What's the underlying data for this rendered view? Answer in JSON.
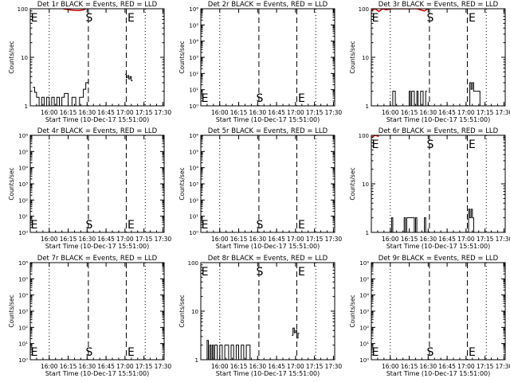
{
  "figure": {
    "panel_title_suffix": "BLACK = Events, RED = LLD",
    "ylabel": "Counts/sec",
    "xlabel": "Start Time (10-Dec-17 15:51:00)",
    "x_tick_labels": [
      "16:00",
      "16:15",
      "16:30",
      "16:45",
      "17:00",
      "17:15",
      "17:30"
    ],
    "marker_S": "S",
    "marker_E": "E",
    "colors": {
      "events": "#000000",
      "lld": "#cc0000",
      "axes": "#000000",
      "background": "#ffffff"
    }
  },
  "chart_data": [
    {
      "type": "line",
      "title": "Det 1r BLACK = Events, RED = LLD",
      "xlabel": "Start Time (10-Dec-17 15:51:00)",
      "ylabel": "Counts/sec",
      "yscale": "log",
      "ylim": [
        1,
        100
      ],
      "y_tick_labels": [
        "1",
        "10",
        "100"
      ],
      "xlim_minutes": [
        -6,
        100
      ],
      "dotted_lines_min": [
        9,
        85
      ],
      "dashed_lines_min": [
        40,
        70
      ],
      "S_min": 40,
      "E_min": 70,
      "S_anchor": "top",
      "E_anchor": "top",
      "series": [
        {
          "name": "Events",
          "color": "#000000",
          "x": [
            -4,
            -2.5,
            -2.5,
            -1,
            -1,
            1,
            1,
            3,
            3,
            5,
            5,
            7,
            7,
            9,
            9,
            11,
            11,
            13,
            13,
            15,
            15,
            17,
            17,
            19,
            19,
            21,
            21,
            24,
            24,
            27,
            27,
            30,
            30,
            33,
            33,
            36,
            36,
            38,
            38,
            40,
            40
          ],
          "y": [
            2.4,
            2.4,
            1.9,
            1.9,
            1.5,
            1.5,
            1,
            1,
            1.5,
            1.5,
            1,
            1,
            1.5,
            1.5,
            1,
            1,
            1.5,
            1.5,
            1,
            1,
            1.5,
            1.5,
            1,
            1,
            1.5,
            1.5,
            1.8,
            1.8,
            1,
            1,
            1.5,
            1.5,
            1,
            1,
            1.5,
            1.5,
            2.2,
            2.2,
            3,
            3,
            3.5
          ]
        },
        {
          "name": "Events",
          "color": "#000000",
          "x": [
            69,
            70,
            70,
            71,
            71,
            72,
            72,
            73,
            73,
            74,
            74,
            75
          ],
          "y": [
            4.5,
            4.5,
            3.8,
            3.8,
            4.2,
            4.2,
            3.6,
            3.6,
            4,
            4,
            3.3,
            3.3
          ]
        },
        {
          "name": "LLD",
          "color": "#cc0000",
          "x": [
            20,
            24,
            28,
            32,
            36,
            38
          ],
          "y": [
            100,
            96,
            93,
            92,
            95,
            100
          ]
        }
      ]
    },
    {
      "type": "line",
      "title": "Det 2r BLACK = Events, RED = LLD",
      "xlabel": "Start Time (10-Dec-17 15:51:00)",
      "ylabel": "Counts/sec",
      "yscale": "log",
      "ylim": [
        1,
        1000000
      ],
      "y_tick_labels": [
        "10⁰",
        "10¹",
        "10²",
        "10³",
        "10⁴",
        "10⁵",
        "10⁶"
      ],
      "xlim_minutes": [
        -6,
        100
      ],
      "dotted_lines_min": [
        9,
        85
      ],
      "dashed_lines_min": [
        40,
        70
      ],
      "S_min": 40,
      "E_min": 70,
      "S_anchor": "bottom",
      "E_anchor": "bottom",
      "series": []
    },
    {
      "type": "line",
      "title": "Det 3r BLACK = Events, RED = LLD",
      "xlabel": "Start Time (10-Dec-17 15:51:00)",
      "ylabel": "Counts/sec",
      "yscale": "log",
      "ylim": [
        1,
        100
      ],
      "y_tick_labels": [
        "1",
        "10",
        "100"
      ],
      "xlim_minutes": [
        -6,
        100
      ],
      "dotted_lines_min": [
        9,
        85
      ],
      "dashed_lines_min": [
        40,
        70
      ],
      "S_min": 40,
      "E_min": 70,
      "S_anchor": "top",
      "E_anchor": "top",
      "series": [
        {
          "name": "Events",
          "color": "#000000",
          "x": [
            10,
            11,
            11,
            13,
            13,
            24,
            24,
            25,
            25,
            26,
            26,
            28,
            28,
            30,
            30,
            31,
            31,
            33,
            33,
            35,
            35,
            37,
            37,
            38
          ],
          "y": [
            1,
            1,
            2,
            2,
            1,
            1,
            2,
            2,
            1,
            1,
            2,
            2,
            1,
            1,
            2,
            2,
            1,
            1,
            2,
            2,
            1,
            1,
            2,
            2
          ]
        },
        {
          "name": "Events",
          "color": "#000000",
          "x": [
            71,
            72,
            72,
            73,
            73,
            74,
            74,
            75,
            75,
            77,
            77,
            80,
            80,
            82
          ],
          "y": [
            1,
            1,
            3,
            3,
            2.2,
            2.2,
            3,
            3,
            2,
            2,
            2,
            2,
            1,
            1
          ]
        },
        {
          "name": "LLD",
          "color": "#cc0000",
          "x": [
            -6,
            -3,
            0,
            3,
            6,
            9,
            30,
            33,
            36,
            39
          ],
          "y": [
            92,
            100,
            88,
            100,
            95,
            100,
            100,
            95,
            90,
            100
          ]
        }
      ]
    },
    {
      "type": "line",
      "title": "Det 4r BLACK = Events, RED = LLD",
      "xlabel": "Start Time (10-Dec-17 15:51:00)",
      "ylabel": "Counts/sec",
      "yscale": "log",
      "ylim": [
        1,
        1000000
      ],
      "y_tick_labels": [
        "10⁰",
        "10¹",
        "10²",
        "10³",
        "10⁴",
        "10⁵",
        "10⁶"
      ],
      "xlim_minutes": [
        -6,
        100
      ],
      "dotted_lines_min": [
        9,
        85
      ],
      "dashed_lines_min": [
        40,
        70
      ],
      "S_min": 40,
      "E_min": 70,
      "S_anchor": "bottom",
      "E_anchor": "bottom",
      "series": []
    },
    {
      "type": "line",
      "title": "Det 5r BLACK = Events, RED = LLD",
      "xlabel": "Start Time (10-Dec-17 15:51:00)",
      "ylabel": "Counts/sec",
      "yscale": "log",
      "ylim": [
        1,
        1000000
      ],
      "y_tick_labels": [
        "10⁰",
        "10¹",
        "10²",
        "10³",
        "10⁴",
        "10⁵",
        "10⁶"
      ],
      "xlim_minutes": [
        -6,
        100
      ],
      "dotted_lines_min": [
        9,
        85
      ],
      "dashed_lines_min": [
        40,
        70
      ],
      "S_min": 40,
      "E_min": 70,
      "S_anchor": "bottom",
      "E_anchor": "bottom",
      "series": []
    },
    {
      "type": "line",
      "title": "Det 6r BLACK = Events, RED = LLD",
      "xlabel": "Start Time (10-Dec-17 15:51:00)",
      "ylabel": "Counts/sec",
      "yscale": "log",
      "ylim": [
        1,
        100
      ],
      "y_tick_labels": [
        "1",
        "10",
        "100"
      ],
      "xlim_minutes": [
        -6,
        100
      ],
      "dotted_lines_min": [
        9,
        85
      ],
      "dashed_lines_min": [
        40,
        70
      ],
      "S_min": 40,
      "E_min": 70,
      "S_anchor": "top",
      "E_anchor": "top",
      "series": [
        {
          "name": "Events",
          "color": "#000000",
          "x": [
            9,
            10,
            10,
            11,
            11,
            20,
            20,
            21,
            21,
            22,
            22,
            28,
            28,
            29,
            29,
            30,
            30,
            36,
            36,
            37,
            37,
            38
          ],
          "y": [
            1,
            1,
            2,
            2,
            1,
            1,
            2,
            2,
            1,
            1,
            2,
            2,
            1,
            1,
            2,
            2,
            1,
            1,
            2,
            2,
            1,
            1
          ]
        },
        {
          "name": "Events",
          "color": "#000000",
          "x": [
            70,
            71,
            71,
            72,
            72,
            73,
            73,
            74,
            74,
            75,
            75,
            76
          ],
          "y": [
            1,
            1,
            3,
            3,
            2,
            2,
            3,
            3,
            2,
            2,
            1,
            1
          ]
        },
        {
          "name": "LLD",
          "color": "#cc0000",
          "x": [
            -6,
            -3,
            0
          ],
          "y": [
            90,
            100,
            95
          ]
        }
      ]
    },
    {
      "type": "line",
      "title": "Det 7r BLACK = Events, RED = LLD",
      "xlabel": "Start Time (10-Dec-17 15:51:00)",
      "ylabel": "Counts/sec",
      "yscale": "log",
      "ylim": [
        1,
        1000000
      ],
      "y_tick_labels": [
        "10⁰",
        "10¹",
        "10²",
        "10³",
        "10⁴",
        "10⁵",
        "10⁶"
      ],
      "xlim_minutes": [
        -6,
        100
      ],
      "dotted_lines_min": [
        9,
        85
      ],
      "dashed_lines_min": [
        40,
        70
      ],
      "S_min": 40,
      "E_min": 70,
      "S_anchor": "bottom",
      "E_anchor": "bottom",
      "series": []
    },
    {
      "type": "line",
      "title": "Det 8r BLACK = Events, RED = LLD",
      "xlabel": "Start Time (10-Dec-17 15:51:00)",
      "ylabel": "Counts/sec",
      "yscale": "log",
      "ylim": [
        1,
        100
      ],
      "y_tick_labels": [
        "1",
        "10",
        "100"
      ],
      "xlim_minutes": [
        -6,
        100
      ],
      "dotted_lines_min": [
        9,
        85
      ],
      "dashed_lines_min": [
        40,
        70
      ],
      "S_min": 40,
      "E_min": 70,
      "S_anchor": "top",
      "E_anchor": "top",
      "series": [
        {
          "name": "Events",
          "color": "#000000",
          "x": [
            -2,
            -1,
            -1,
            0,
            0,
            1,
            1,
            2,
            2,
            3,
            3,
            4,
            4,
            5,
            5,
            7,
            7,
            9,
            9,
            11,
            11,
            13,
            13,
            16,
            16,
            18,
            18,
            20,
            20,
            22,
            22,
            24,
            24,
            26,
            26,
            28,
            28,
            30,
            30,
            33,
            33,
            36
          ],
          "y": [
            1,
            1,
            2.5,
            2.5,
            1,
            1,
            2,
            2,
            1,
            1,
            2,
            2,
            1,
            1,
            2,
            2,
            1,
            1,
            2,
            2,
            1,
            1,
            2,
            2,
            1,
            1,
            2,
            2,
            1,
            1,
            2,
            2,
            1,
            1,
            2,
            2,
            1,
            1,
            2,
            2,
            1,
            1
          ]
        },
        {
          "name": "Events",
          "color": "#000000",
          "x": [
            66,
            67,
            67,
            68,
            68,
            69,
            69,
            70,
            70,
            71,
            71,
            72
          ],
          "y": [
            3.2,
            3.2,
            4.5,
            4.5,
            3.6,
            3.6,
            4,
            4,
            2.8,
            2.8,
            3.5,
            3.5
          ]
        }
      ]
    },
    {
      "type": "line",
      "title": "Det 9r BLACK = Events, RED = LLD",
      "xlabel": "Start Time (10-Dec-17 15:51:00)",
      "ylabel": "Counts/sec",
      "yscale": "log",
      "ylim": [
        1,
        1000000
      ],
      "y_tick_labels": [
        "10⁰",
        "10¹",
        "10²",
        "10³",
        "10⁴",
        "10⁵",
        "10⁶"
      ],
      "xlim_minutes": [
        -6,
        100
      ],
      "dotted_lines_min": [
        9,
        85
      ],
      "dashed_lines_min": [
        40,
        70
      ],
      "S_min": 40,
      "E_min": 70,
      "S_anchor": "bottom",
      "E_anchor": "bottom",
      "series": []
    }
  ]
}
